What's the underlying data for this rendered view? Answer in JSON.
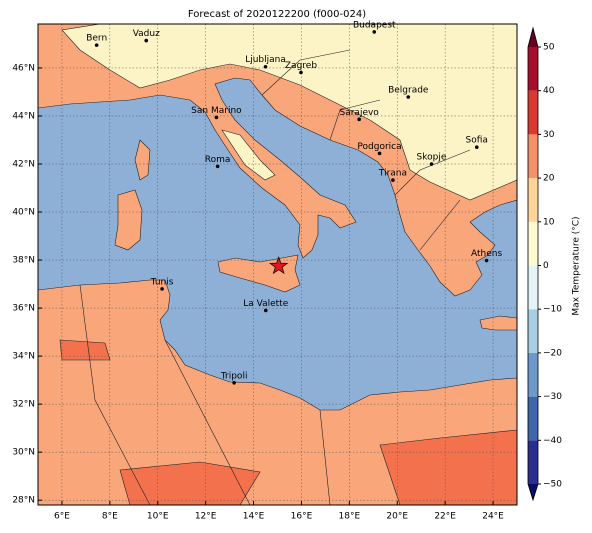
{
  "map": {
    "title": "Forecast of 2020122200 (f000-024)",
    "xlim": [
      5,
      25
    ],
    "ylim": [
      27.8,
      47.83
    ],
    "xticks": [
      {
        "value": 6,
        "label": "6°E"
      },
      {
        "value": 8,
        "label": "8°E"
      },
      {
        "value": 10,
        "label": "10°E"
      },
      {
        "value": 12,
        "label": "12°E"
      },
      {
        "value": 14,
        "label": "14°E"
      },
      {
        "value": 16,
        "label": "16°E"
      },
      {
        "value": 18,
        "label": "18°E"
      },
      {
        "value": 20,
        "label": "20°E"
      },
      {
        "value": 22,
        "label": "22°E"
      },
      {
        "value": 24,
        "label": "24°E"
      }
    ],
    "yticks": [
      {
        "value": 28,
        "label": "28°N"
      },
      {
        "value": 30,
        "label": "30°N"
      },
      {
        "value": 32,
        "label": "32°N"
      },
      {
        "value": 34,
        "label": "34°N"
      },
      {
        "value": 36,
        "label": "36°N"
      },
      {
        "value": 38,
        "label": "38°N"
      },
      {
        "value": 40,
        "label": "40°N"
      },
      {
        "value": 42,
        "label": "42°N"
      },
      {
        "value": 44,
        "label": "44°N"
      },
      {
        "value": 46,
        "label": "46°N"
      }
    ],
    "grid": true,
    "cities": [
      {
        "name": "Bern",
        "lon": 7.45,
        "lat": 46.95
      },
      {
        "name": "Vaduz",
        "lon": 9.52,
        "lat": 47.14
      },
      {
        "name": "Budapest",
        "lon": 19.04,
        "lat": 47.5
      },
      {
        "name": "Ljubljana",
        "lon": 14.5,
        "lat": 46.05
      },
      {
        "name": "Zagreb",
        "lon": 15.98,
        "lat": 45.81
      },
      {
        "name": "Belgrade",
        "lon": 20.46,
        "lat": 44.79
      },
      {
        "name": "San Marino",
        "lon": 12.45,
        "lat": 43.94
      },
      {
        "name": "Sarajevo",
        "lon": 18.41,
        "lat": 43.86
      },
      {
        "name": "Sofia",
        "lon": 23.32,
        "lat": 42.7
      },
      {
        "name": "Podgorica",
        "lon": 19.26,
        "lat": 42.44
      },
      {
        "name": "Skopje",
        "lon": 21.43,
        "lat": 42.0
      },
      {
        "name": "Roma",
        "lon": 12.5,
        "lat": 41.9
      },
      {
        "name": "Tirana",
        "lon": 19.82,
        "lat": 41.33
      },
      {
        "name": "Athens",
        "lon": 23.73,
        "lat": 37.98
      },
      {
        "name": "Tunis",
        "lon": 10.18,
        "lat": 36.8
      },
      {
        "name": "La Valette",
        "lon": 14.51,
        "lat": 35.9
      },
      {
        "name": "Tripoli",
        "lon": 13.19,
        "lat": 32.89
      }
    ],
    "star": {
      "lon": 15.05,
      "lat": 37.75,
      "color": "#e8141c"
    },
    "colorbar": {
      "label": "Max Temperature (°C)",
      "range": [
        -50,
        50
      ],
      "ticks": [
        {
          "value": -50,
          "label": "−50"
        },
        {
          "value": -40,
          "label": "−40"
        },
        {
          "value": -30,
          "label": "−30"
        },
        {
          "value": -20,
          "label": "−20"
        },
        {
          "value": -10,
          "label": "−10"
        },
        0,
        10,
        20,
        30,
        40,
        50
      ],
      "colors": [
        "#2b2d8f",
        "#3d66ab",
        "#6c9acb",
        "#a7cee3",
        "#e3f3f8",
        "#fefbd0",
        "#fed598",
        "#f4936a",
        "#d83a30",
        "#a50f2b"
      ],
      "under": "#0b0b6b",
      "over": "#6b0020"
    }
  }
}
